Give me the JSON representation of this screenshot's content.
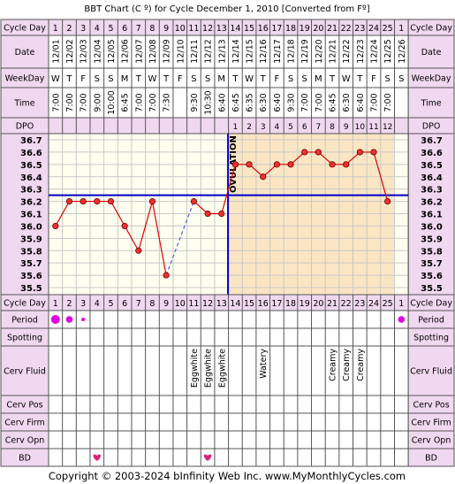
{
  "title": "BBT Chart (C º) for Cycle December 1, 2010  [Converted from Fº]",
  "footer": "Copyright © 2003-2024 bInfinity Web Inc.    www.MyMonthlyCycles.com",
  "row_labels": {
    "cycle_day": "Cycle Day",
    "date": "Date",
    "weekday": "WeekDay",
    "time": "Time",
    "dpo": "DPO",
    "period": "Period",
    "spotting": "Spotting",
    "cerv_fluid": "Cerv Fluid",
    "cerv_pos": "Cerv Pos",
    "cerv_firm": "Cerv Firm",
    "cerv_opn": "Cerv Opn",
    "bd": "BD"
  },
  "colors": {
    "header_bg": "#f0d8f0",
    "grid_pre": "#fffff0",
    "grid_post": "#fbe6c4",
    "grid_line": "#c8c8c8",
    "temp_line": "#e00000",
    "point_fill": "#f03030",
    "coverline": "#0000c8",
    "period_dot": "#e000e0",
    "heart": "#e0207a"
  },
  "ovulation_label": "OVULATION",
  "cycle_days": [
    "1",
    "2",
    "3",
    "4",
    "5",
    "6",
    "7",
    "8",
    "9",
    "10",
    "11",
    "12",
    "13",
    "14",
    "15",
    "16",
    "17",
    "18",
    "19",
    "20",
    "21",
    "22",
    "23",
    "24",
    "25",
    "1"
  ],
  "dates": [
    "12/01",
    "12/02",
    "12/03",
    "12/04",
    "12/05",
    "12/06",
    "12/07",
    "12/08",
    "12/09",
    "12/10",
    "12/11",
    "12/12",
    "12/13",
    "12/14",
    "12/15",
    "12/16",
    "12/17",
    "12/18",
    "12/19",
    "12/20",
    "12/21",
    "12/22",
    "12/23",
    "12/24",
    "12/25",
    "12/26"
  ],
  "weekdays": [
    "W",
    "T",
    "F",
    "S",
    "S",
    "M",
    "T",
    "W",
    "T",
    "F",
    "S",
    "S",
    "M",
    "T",
    "W",
    "T",
    "F",
    "S",
    "S",
    "M",
    "T",
    "W",
    "T",
    "F",
    "S",
    "S"
  ],
  "times": [
    "7:00",
    "7:00",
    "7:00",
    "9:00",
    "10:00",
    "6:45",
    "7:00",
    "7:00",
    "7:30",
    "",
    "9:30",
    "10:30",
    "6:40",
    "6:45",
    "6:35",
    "6:30",
    "6:40",
    "9:30",
    "7:00",
    "7:00",
    "6:45",
    "6:30",
    "6:40",
    "7:00",
    "7:00",
    ""
  ],
  "dpo": [
    "",
    "",
    "",
    "",
    "",
    "",
    "",
    "",
    "",
    "",
    "",
    "",
    "",
    "1",
    "2",
    "3",
    "4",
    "5",
    "6",
    "7",
    "8",
    "9",
    "10",
    "11",
    "12",
    ""
  ],
  "period": [
    "heavy",
    "medium",
    "light",
    "",
    "",
    "",
    "",
    "",
    "",
    "",
    "",
    "",
    "",
    "",
    "",
    "",
    "",
    "",
    "",
    "",
    "",
    "",
    "",
    "",
    "",
    "medium"
  ],
  "cerv_fluid": [
    "",
    "",
    "",
    "",
    "",
    "",
    "",
    "",
    "",
    "",
    "Eggwhite",
    "Eggwhite",
    "Eggwhite",
    "",
    "",
    "Watery",
    "",
    "",
    "",
    "",
    "Creamy",
    "Creamy",
    "Creamy",
    "",
    "",
    ""
  ],
  "bd": [
    "",
    "",
    "",
    "heart",
    "",
    "",
    "",
    "",
    "",
    "",
    "",
    "heart",
    "",
    "",
    "",
    "",
    "",
    "",
    "",
    "",
    "",
    "",
    "",
    "",
    "",
    ""
  ],
  "chart_data": {
    "type": "line",
    "x": [
      1,
      2,
      3,
      4,
      5,
      6,
      7,
      8,
      9,
      10,
      11,
      12,
      13,
      14,
      15,
      16,
      17,
      18,
      19,
      20,
      21,
      22,
      23,
      24,
      25,
      26
    ],
    "series": [
      {
        "values": [
          36.0,
          36.2,
          36.2,
          36.2,
          36.2,
          36.0,
          35.8,
          36.2,
          35.6,
          null,
          36.2,
          36.1,
          36.1,
          36.5,
          36.5,
          36.4,
          36.5,
          36.5,
          36.6,
          36.6,
          36.5,
          36.5,
          36.6,
          36.6,
          36.2,
          null
        ]
      }
    ],
    "y_ticks": [
      "36.7",
      "36.6",
      "36.5",
      "36.4",
      "36.3",
      "36.2",
      "36.1",
      "36.0",
      "35.9",
      "35.8",
      "35.7",
      "35.6",
      "35.5"
    ],
    "ylim": [
      35.5,
      36.7
    ],
    "coverline": 36.25,
    "ovulation_day": 13,
    "dashed_gaps": [
      [
        9,
        11
      ]
    ]
  }
}
